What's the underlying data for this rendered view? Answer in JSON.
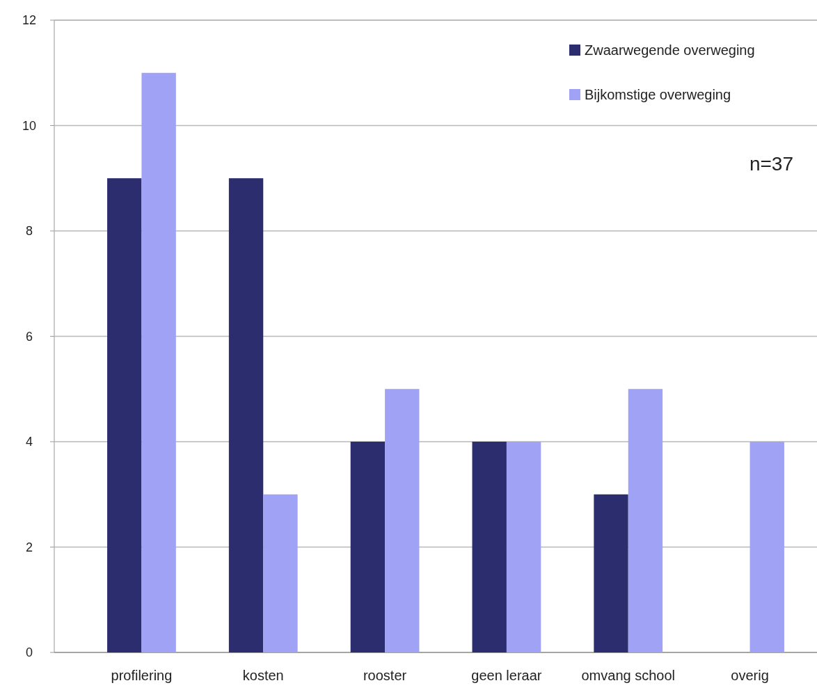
{
  "chart_data": {
    "type": "bar",
    "categories": [
      "profilering",
      "kosten",
      "rooster",
      "geen leraar",
      "omvang school",
      "overig"
    ],
    "series": [
      {
        "name": "Zwaarwegende overweging",
        "color": "#2b2d6e",
        "values": [
          9,
          9,
          4,
          4,
          3,
          0
        ]
      },
      {
        "name": "Bijkomstige overweging",
        "color": "#a0a3f5",
        "values": [
          11,
          3,
          5,
          4,
          5,
          4
        ]
      }
    ],
    "ylim": [
      0,
      12
    ],
    "yticks": [
      0,
      2,
      4,
      6,
      8,
      10,
      12
    ],
    "grid": "y",
    "legend": "top right",
    "annotations": [
      "n=37"
    ]
  }
}
